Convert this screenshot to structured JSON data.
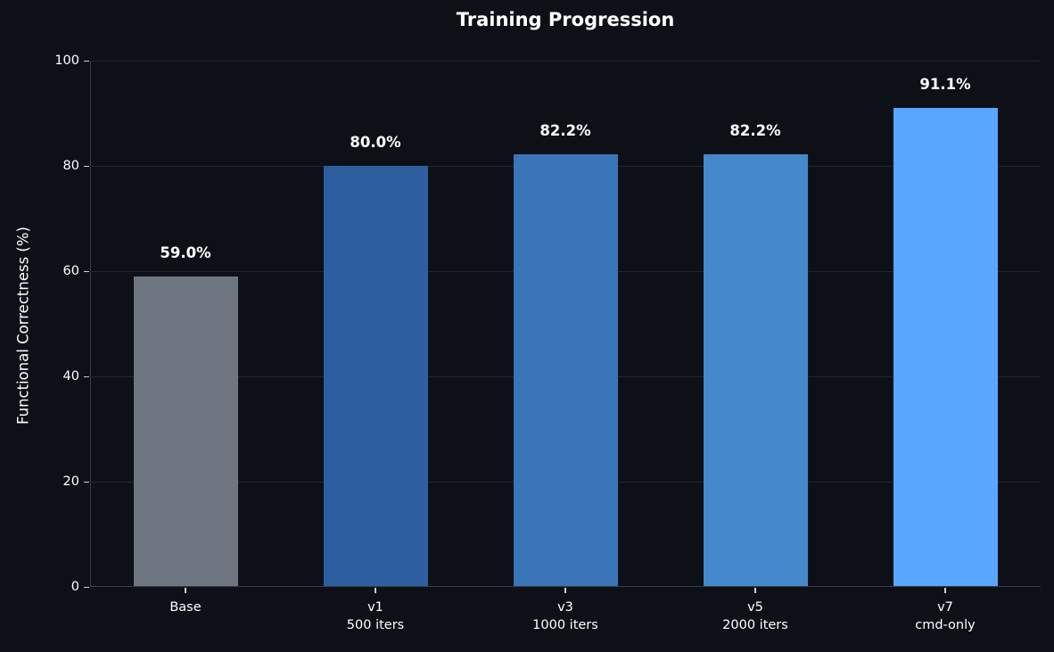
{
  "chart_data": {
    "type": "bar",
    "title": "Training Progression",
    "xlabel": "",
    "ylabel": "Functional Correctness (%)",
    "ylim": [
      0,
      100
    ],
    "yticks": [
      "0",
      "20",
      "40",
      "60",
      "80",
      "100"
    ],
    "grid": true,
    "categories": [
      {
        "line1": "Base",
        "line2": ""
      },
      {
        "line1": "v1",
        "line2": "500 iters"
      },
      {
        "line1": "v3",
        "line2": "1000 iters"
      },
      {
        "line1": "v5",
        "line2": "2000 iters"
      },
      {
        "line1": "v7",
        "line2": "cmd-only"
      }
    ],
    "values": [
      59.0,
      80.0,
      82.2,
      82.2,
      91.1
    ],
    "value_labels": [
      "59.0%",
      "80.0%",
      "82.2%",
      "82.2%",
      "91.1%"
    ],
    "colors": [
      "#6e7681",
      "#2d5fa0",
      "#3a75b8",
      "#4589cc",
      "#58a6ff"
    ]
  },
  "theme": {
    "background": "#0d1117",
    "grid": "#21262d",
    "axis": "#3a3f47",
    "text": "#ffffff"
  }
}
